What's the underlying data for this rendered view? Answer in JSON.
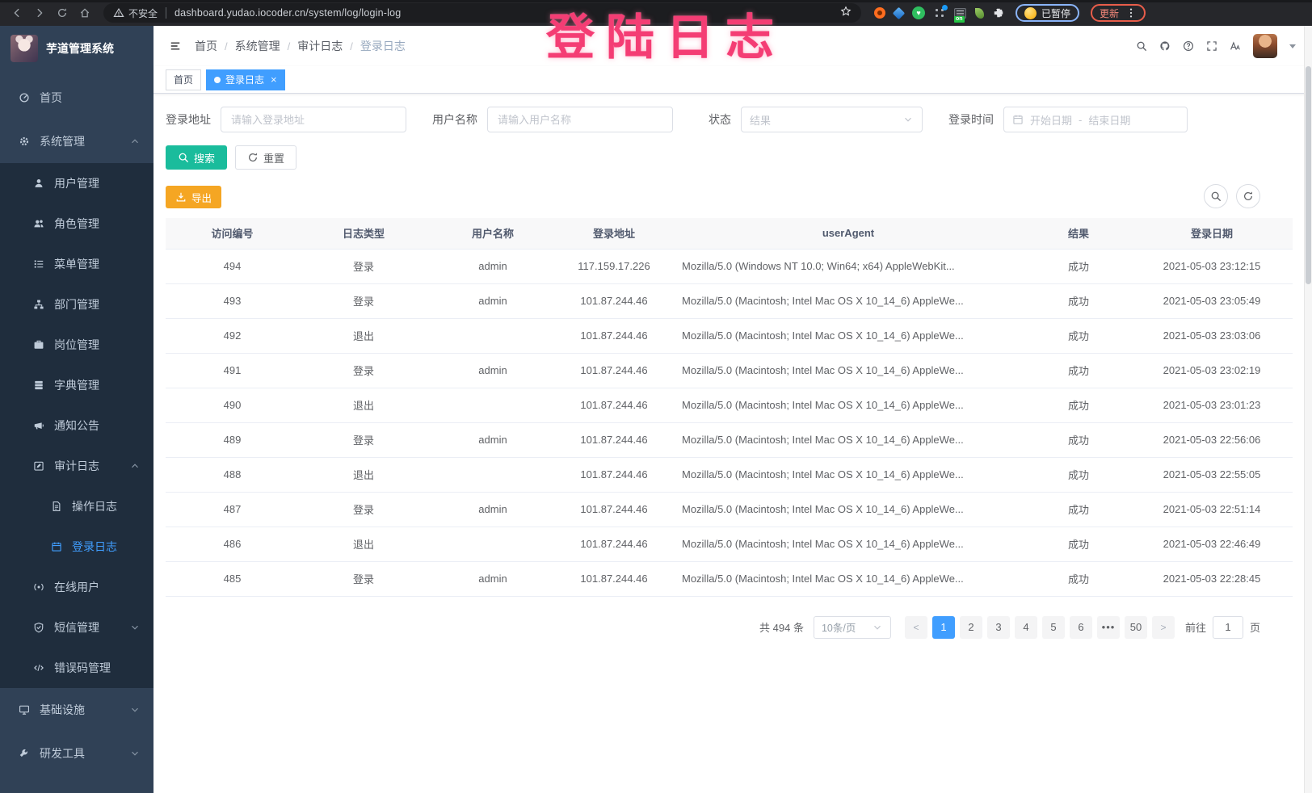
{
  "annotation": {
    "text": "登陆日志"
  },
  "browser": {
    "security_label": "不安全",
    "url": "dashboard.yudao.iocoder.cn/system/log/login-log",
    "paused_label": "已暂停",
    "update_label": "更新",
    "extension_badge": "on"
  },
  "sidebar": {
    "logo_title": "芋道管理系统",
    "menu": [
      {
        "name": "home",
        "label": "首页",
        "icon": "dashboard-icon"
      },
      {
        "name": "system-management",
        "label": "系统管理",
        "icon": "gear-icon",
        "collapsible": true,
        "expanded": true,
        "children": [
          {
            "name": "user-management",
            "label": "用户管理",
            "icon": "user-icon"
          },
          {
            "name": "role-management",
            "label": "角色管理",
            "icon": "users-icon"
          },
          {
            "name": "menu-management",
            "label": "菜单管理",
            "icon": "menu-list-icon"
          },
          {
            "name": "dept-management",
            "label": "部门管理",
            "icon": "org-tree-icon"
          },
          {
            "name": "post-management",
            "label": "岗位管理",
            "icon": "briefcase-icon"
          },
          {
            "name": "dict-management",
            "label": "字典管理",
            "icon": "book-icon"
          },
          {
            "name": "notice-announcement",
            "label": "通知公告",
            "icon": "megaphone-icon"
          },
          {
            "name": "audit-log",
            "label": "审计日志",
            "icon": "edit-icon",
            "collapsible": true,
            "expanded": true,
            "children": [
              {
                "name": "operation-log",
                "label": "操作日志",
                "icon": "document-icon"
              },
              {
                "name": "login-log",
                "label": "登录日志",
                "icon": "calendar-icon",
                "active": true
              }
            ]
          },
          {
            "name": "online-users",
            "label": "在线用户",
            "icon": "online-icon"
          },
          {
            "name": "sms-management",
            "label": "短信管理",
            "icon": "shield-icon",
            "collapsible": true,
            "expanded": false
          },
          {
            "name": "error-code-management",
            "label": "错误码管理",
            "icon": "code-icon"
          }
        ]
      },
      {
        "name": "infrastructure",
        "label": "基础设施",
        "icon": "monitor-icon",
        "collapsible": true,
        "expanded": false
      },
      {
        "name": "dev-tools",
        "label": "研发工具",
        "icon": "tool-icon",
        "collapsible": true,
        "expanded": false
      }
    ]
  },
  "header": {
    "breadcrumb": [
      "首页",
      "系统管理",
      "审计日志",
      "登录日志"
    ]
  },
  "tabs": [
    {
      "label": "首页",
      "active": false
    },
    {
      "label": "登录日志",
      "active": true
    }
  ],
  "filters": {
    "login_address": {
      "label": "登录地址",
      "placeholder": "请输入登录地址"
    },
    "username": {
      "label": "用户名称",
      "placeholder": "请输入用户名称"
    },
    "status": {
      "label": "状态",
      "placeholder": "结果"
    },
    "login_time": {
      "label": "登录时间",
      "start_placeholder": "开始日期",
      "separator": "-",
      "end_placeholder": "结束日期"
    },
    "search_label": "搜索",
    "reset_label": "重置"
  },
  "toolbar": {
    "export_label": "导出"
  },
  "table": {
    "columns": [
      "访问编号",
      "日志类型",
      "用户名称",
      "登录地址",
      "userAgent",
      "结果",
      "登录日期"
    ],
    "rows": [
      {
        "id": "494",
        "type": "登录",
        "username": "admin",
        "ip": "117.159.17.226",
        "user_agent": "Mozilla/5.0 (Windows NT 10.0; Win64; x64) AppleWebKit...",
        "result": "成功",
        "date": "2021-05-03 23:12:15"
      },
      {
        "id": "493",
        "type": "登录",
        "username": "admin",
        "ip": "101.87.244.46",
        "user_agent": "Mozilla/5.0 (Macintosh; Intel Mac OS X 10_14_6) AppleWe...",
        "result": "成功",
        "date": "2021-05-03 23:05:49"
      },
      {
        "id": "492",
        "type": "退出",
        "username": "",
        "ip": "101.87.244.46",
        "user_agent": "Mozilla/5.0 (Macintosh; Intel Mac OS X 10_14_6) AppleWe...",
        "result": "成功",
        "date": "2021-05-03 23:03:06"
      },
      {
        "id": "491",
        "type": "登录",
        "username": "admin",
        "ip": "101.87.244.46",
        "user_agent": "Mozilla/5.0 (Macintosh; Intel Mac OS X 10_14_6) AppleWe...",
        "result": "成功",
        "date": "2021-05-03 23:02:19"
      },
      {
        "id": "490",
        "type": "退出",
        "username": "",
        "ip": "101.87.244.46",
        "user_agent": "Mozilla/5.0 (Macintosh; Intel Mac OS X 10_14_6) AppleWe...",
        "result": "成功",
        "date": "2021-05-03 23:01:23"
      },
      {
        "id": "489",
        "type": "登录",
        "username": "admin",
        "ip": "101.87.244.46",
        "user_agent": "Mozilla/5.0 (Macintosh; Intel Mac OS X 10_14_6) AppleWe...",
        "result": "成功",
        "date": "2021-05-03 22:56:06"
      },
      {
        "id": "488",
        "type": "退出",
        "username": "",
        "ip": "101.87.244.46",
        "user_agent": "Mozilla/5.0 (Macintosh; Intel Mac OS X 10_14_6) AppleWe...",
        "result": "成功",
        "date": "2021-05-03 22:55:05"
      },
      {
        "id": "487",
        "type": "登录",
        "username": "admin",
        "ip": "101.87.244.46",
        "user_agent": "Mozilla/5.0 (Macintosh; Intel Mac OS X 10_14_6) AppleWe...",
        "result": "成功",
        "date": "2021-05-03 22:51:14"
      },
      {
        "id": "486",
        "type": "退出",
        "username": "",
        "ip": "101.87.244.46",
        "user_agent": "Mozilla/5.0 (Macintosh; Intel Mac OS X 10_14_6) AppleWe...",
        "result": "成功",
        "date": "2021-05-03 22:46:49"
      },
      {
        "id": "485",
        "type": "登录",
        "username": "admin",
        "ip": "101.87.244.46",
        "user_agent": "Mozilla/5.0 (Macintosh; Intel Mac OS X 10_14_6) AppleWe...",
        "result": "成功",
        "date": "2021-05-03 22:28:45"
      }
    ]
  },
  "pagination": {
    "total_text": "共 494 条",
    "page_size": "10条/页",
    "pages": [
      "1",
      "2",
      "3",
      "4",
      "5",
      "6",
      "•••",
      "50"
    ],
    "active_page": "1",
    "prev_label": "<",
    "next_label": ">",
    "goto_label": "前往",
    "goto_value": "1",
    "goto_suffix": "页"
  },
  "colors": {
    "accent_blue": "#409eff",
    "search_teal": "#1abc9c",
    "export_orange": "#f5a623",
    "sidebar_bg": "#304156",
    "submenu_bg": "#1f2d3d",
    "annotation_pink": "#f43d74"
  }
}
